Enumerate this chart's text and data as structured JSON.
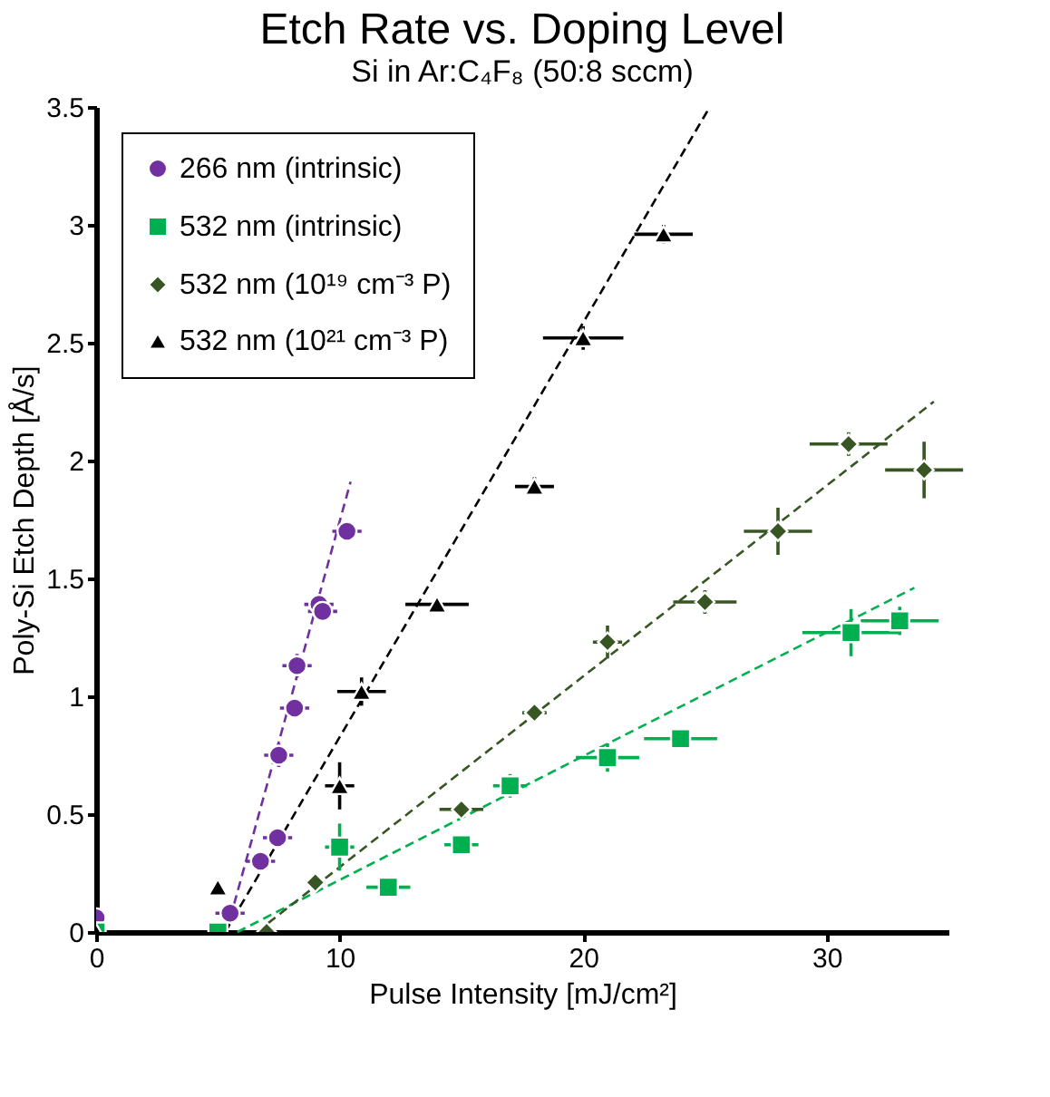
{
  "chart_data": {
    "type": "scatter",
    "title": "Etch Rate vs. Doping Level",
    "subtitle": "Si in Ar:C₄F₈ (50:8 sccm)",
    "xlabel": "Pulse Intensity [mJ/cm²]",
    "ylabel": "Poly-Si Etch Depth [Å/s]",
    "xlim": [
      0,
      35
    ],
    "xticks": [
      0,
      10,
      20,
      30
    ],
    "ylim": [
      0,
      3.5
    ],
    "yticks": [
      0,
      0.5,
      1,
      1.5,
      2,
      2.5,
      3,
      3.5
    ],
    "grid": false,
    "legend": "top left",
    "series": [
      {
        "name": "266 nm (intrinsic)",
        "color": "#7030a0",
        "marker": "circle",
        "x": [
          0,
          5.5,
          6.75,
          7.45,
          7.5,
          8.15,
          8.25,
          9.15,
          9.3,
          10.3
        ],
        "values": [
          0.06,
          0.08,
          0.3,
          0.4,
          0.75,
          0.95,
          1.13,
          1.39,
          1.36,
          1.7
        ],
        "xerrors": [
          null,
          0.6,
          0.6,
          0.6,
          0.6,
          0.6,
          0.6,
          0.6,
          0.6,
          0.6
        ],
        "errors": [
          null,
          null,
          0.03,
          0.04,
          0.05,
          0.04,
          0.05,
          0.04,
          0.04,
          0.03
        ]
      },
      {
        "name": "532 nm (intrinsic)",
        "color": "#00b050",
        "marker": "square",
        "x": [
          0,
          5,
          10,
          12,
          15,
          17,
          21,
          24,
          31,
          33
        ],
        "values": [
          0,
          0,
          0.36,
          0.19,
          0.37,
          0.62,
          0.74,
          0.82,
          1.27,
          1.32
        ],
        "xerrors": [
          null,
          null,
          0.6,
          0.9,
          0.7,
          0.7,
          1.3,
          1.5,
          2.0,
          1.6
        ],
        "errors": [
          null,
          null,
          0.1,
          0.03,
          0.03,
          0.05,
          0.06,
          0.03,
          0.1,
          0.06
        ]
      },
      {
        "name": "532 nm (10¹⁹ cm⁻³ P)",
        "color": "#375623",
        "marker": "diamond",
        "x": [
          7,
          9,
          15,
          18,
          21,
          25,
          28,
          30.9,
          34
        ],
        "values": [
          0,
          0.21,
          0.52,
          0.93,
          1.23,
          1.4,
          1.7,
          2.07,
          1.96
        ],
        "xerrors": [
          null,
          0.4,
          0.9,
          0.5,
          0.6,
          1.3,
          1.4,
          1.6,
          1.6
        ],
        "errors": [
          null,
          null,
          0.03,
          0.04,
          0.07,
          0.05,
          0.1,
          0.05,
          0.12
        ]
      },
      {
        "name": "532 nm (10²¹ cm⁻³ P)",
        "color": "#000000",
        "marker": "triangle",
        "x": [
          0,
          5,
          10,
          10.9,
          14,
          18,
          20,
          23.3
        ],
        "values": [
          0,
          0.19,
          0.62,
          1.02,
          1.39,
          1.89,
          2.52,
          2.96
        ],
        "xerrors": [
          null,
          null,
          0.6,
          1.0,
          1.3,
          0.8,
          1.65,
          1.2
        ],
        "errors": [
          null,
          0.03,
          0.1,
          0.06,
          0.03,
          0.04,
          0.05,
          0.04
        ]
      },
      {
        "type": "line",
        "color": "#7030a0",
        "line_style": "dashed",
        "x": [
          5.35,
          10.45
        ],
        "values": [
          0,
          1.91
        ]
      },
      {
        "type": "line",
        "color": "#00b050",
        "line_style": "dashed",
        "x": [
          5.8,
          33.6
        ],
        "values": [
          0,
          1.46
        ]
      },
      {
        "type": "line",
        "color": "#375623",
        "line_style": "dashed",
        "x": [
          6.6,
          34.4
        ],
        "values": [
          0,
          2.25
        ]
      },
      {
        "type": "line",
        "color": "#000000",
        "line_style": "dashed",
        "x": [
          5.3,
          25.2
        ],
        "values": [
          0,
          3.5
        ]
      }
    ]
  }
}
